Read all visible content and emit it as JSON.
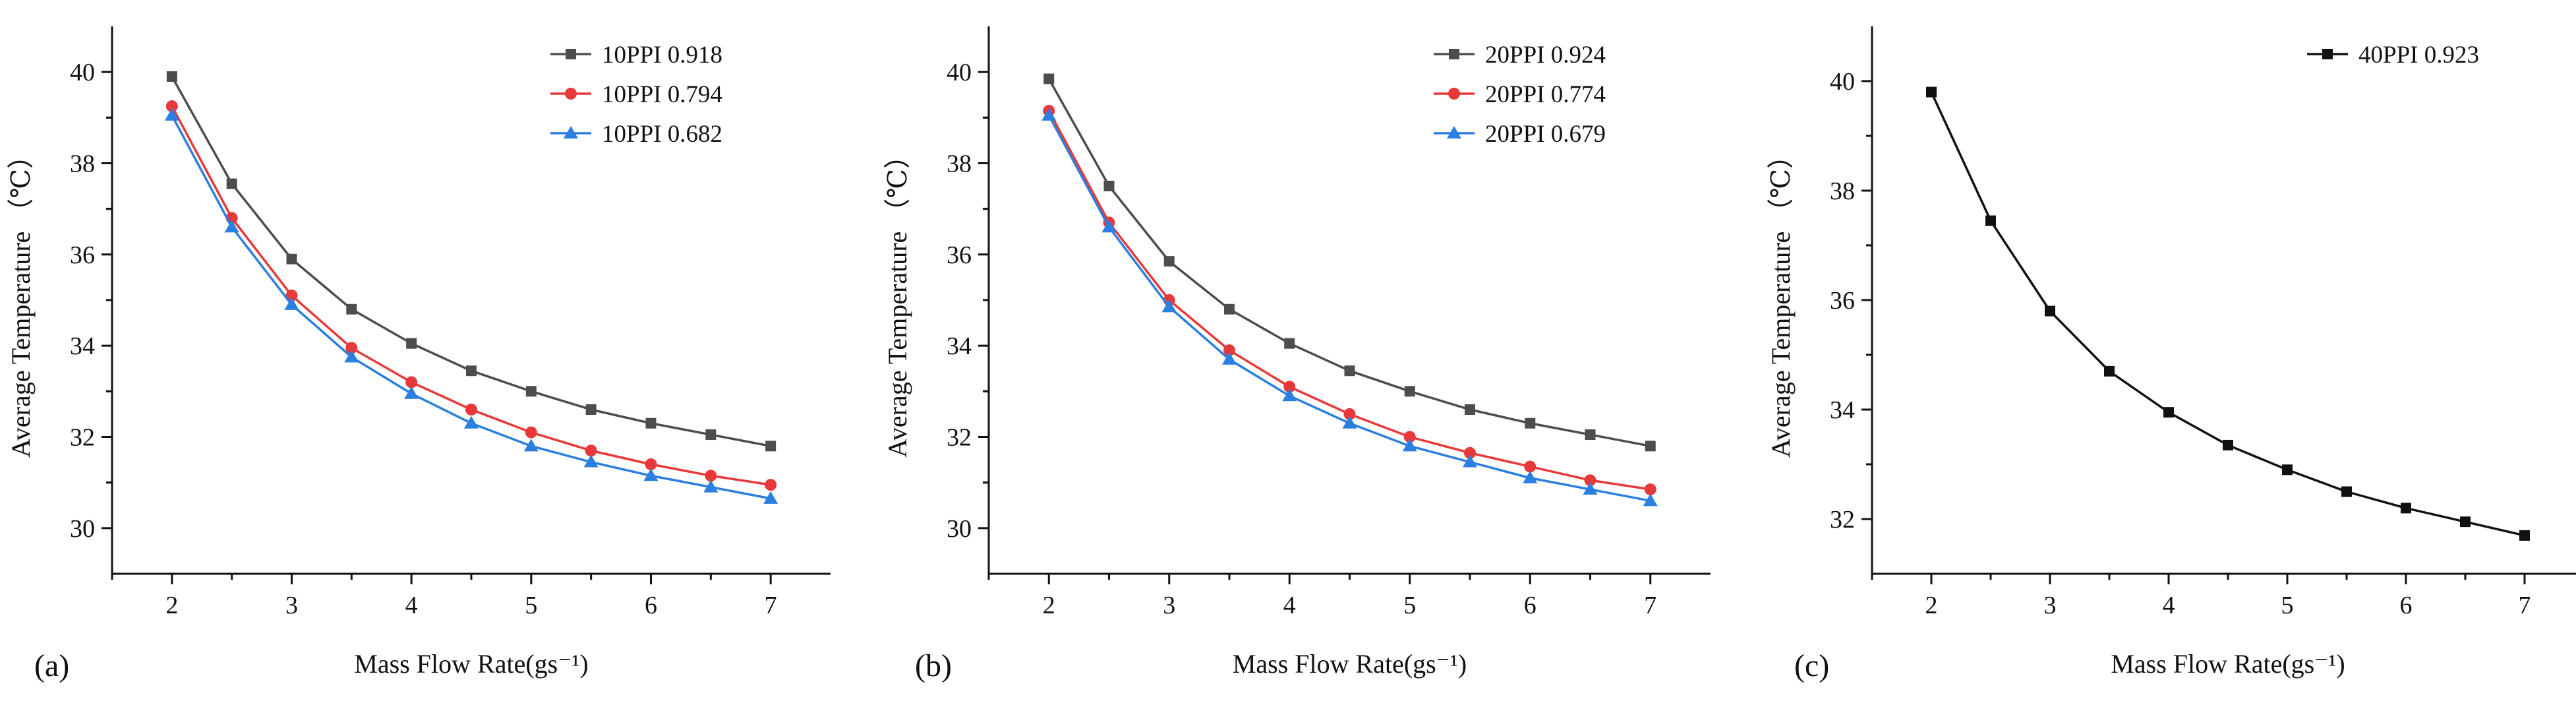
{
  "chart_data": [
    {
      "type": "line",
      "panel_label": "(a)",
      "xlabel": "Mass Flow Rate(gs⁻¹)",
      "ylabel": "Average Temperature （℃）",
      "xlim": [
        1.5,
        7.5
      ],
      "ylim": [
        29,
        41
      ],
      "x_ticks": [
        "2",
        "3",
        "4",
        "5",
        "6",
        "7"
      ],
      "y_ticks": [
        "30",
        "32",
        "34",
        "36",
        "38",
        "40"
      ],
      "legend_position": "top-right",
      "x": [
        2,
        2.5,
        3,
        3.5,
        4,
        4.5,
        5,
        5.5,
        6,
        6.5,
        7
      ],
      "series": [
        {
          "name": "10PPI 0.918",
          "color": "#4d4d4d",
          "marker": "square",
          "values": [
            39.9,
            37.55,
            35.9,
            34.8,
            34.05,
            33.45,
            33.0,
            32.6,
            32.3,
            32.05,
            31.8
          ]
        },
        {
          "name": "10PPI 0.794",
          "color": "#e8393a",
          "marker": "circle",
          "values": [
            39.25,
            36.8,
            35.1,
            33.95,
            33.2,
            32.6,
            32.1,
            31.7,
            31.4,
            31.15,
            30.95
          ]
        },
        {
          "name": "10PPI 0.682",
          "color": "#2a7fe0",
          "marker": "triangle",
          "values": [
            39.05,
            36.6,
            34.9,
            33.75,
            32.95,
            32.3,
            31.8,
            31.45,
            31.15,
            30.9,
            30.65
          ]
        }
      ]
    },
    {
      "type": "line",
      "panel_label": "(b)",
      "xlabel": "Mass Flow Rate(gs⁻¹)",
      "ylabel": "Average Temperature （℃）",
      "xlim": [
        1.5,
        7.5
      ],
      "ylim": [
        29,
        41
      ],
      "x_ticks": [
        "2",
        "3",
        "4",
        "5",
        "6",
        "7"
      ],
      "y_ticks": [
        "30",
        "32",
        "34",
        "36",
        "38",
        "40"
      ],
      "legend_position": "top-right",
      "x": [
        2,
        2.5,
        3,
        3.5,
        4,
        4.5,
        5,
        5.5,
        6,
        6.5,
        7
      ],
      "series": [
        {
          "name": "20PPI 0.924",
          "color": "#4d4d4d",
          "marker": "square",
          "values": [
            39.85,
            37.5,
            35.85,
            34.8,
            34.05,
            33.45,
            33.0,
            32.6,
            32.3,
            32.05,
            31.8
          ]
        },
        {
          "name": "20PPI 0.774",
          "color": "#e8393a",
          "marker": "circle",
          "values": [
            39.15,
            36.7,
            35.0,
            33.9,
            33.1,
            32.5,
            32.0,
            31.65,
            31.35,
            31.05,
            30.85
          ]
        },
        {
          "name": "20PPI 0.679",
          "color": "#2a7fe0",
          "marker": "triangle",
          "values": [
            39.05,
            36.6,
            34.85,
            33.7,
            32.9,
            32.3,
            31.8,
            31.45,
            31.1,
            30.85,
            30.6
          ]
        }
      ]
    },
    {
      "type": "line",
      "panel_label": "(c)",
      "xlabel": "Mass Flow Rate(gs⁻¹)",
      "ylabel": "Average Temperature （℃）",
      "xlim": [
        1.5,
        7.5
      ],
      "ylim": [
        31,
        41
      ],
      "x_ticks": [
        "2",
        "3",
        "4",
        "5",
        "6",
        "7"
      ],
      "y_ticks": [
        "32",
        "34",
        "36",
        "38",
        "40"
      ],
      "legend_position": "top-right",
      "x": [
        2,
        2.5,
        3,
        3.5,
        4,
        4.5,
        5,
        5.5,
        6,
        6.5,
        7
      ],
      "series": [
        {
          "name": "40PPI 0.923",
          "color": "#111111",
          "marker": "square",
          "values": [
            39.8,
            37.45,
            35.8,
            34.7,
            33.95,
            33.35,
            32.9,
            32.5,
            32.2,
            31.95,
            31.7
          ]
        }
      ]
    }
  ]
}
